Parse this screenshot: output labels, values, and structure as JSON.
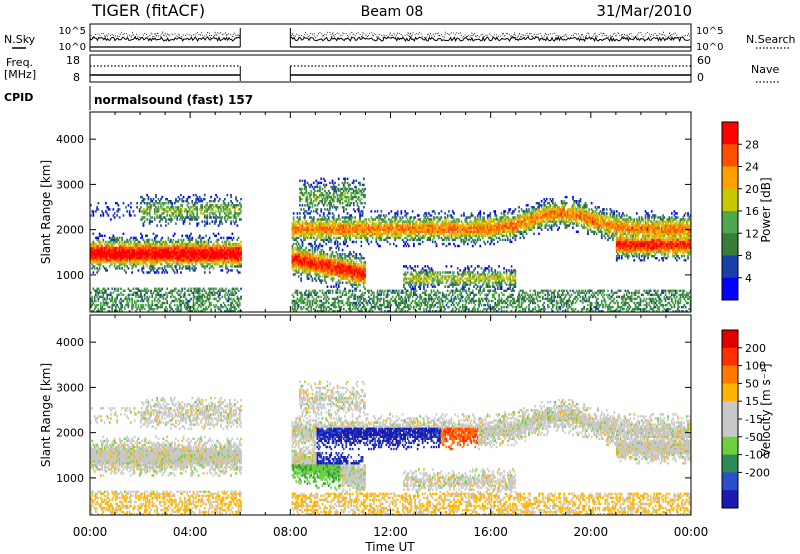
{
  "header": {
    "station": "TIGER (fitACF)",
    "beam": "Beam 08",
    "date": "31/Mar/2010"
  },
  "noise_panel": {
    "left_label": "N.Sky",
    "right_label": "N.Search",
    "left_ticks": [
      "10^5",
      "10^0"
    ],
    "right_ticks": [
      "10^5",
      "10^0"
    ]
  },
  "freq_panel": {
    "left_label_1": "Freq.",
    "left_label_2": "[MHz]",
    "right_label": "Nave",
    "left_ticks": [
      "18",
      "8"
    ],
    "right_ticks": [
      "60",
      "0"
    ]
  },
  "cpid": {
    "label": "CPID",
    "value": "normalsound (fast) 157"
  },
  "colors": {
    "power": [
      "#0000ff",
      "#1a3fa8",
      "#3a7c3a",
      "#4ea84e",
      "#c8c800",
      "#ffa000",
      "#ff5000",
      "#ff0000"
    ],
    "velocity": [
      "#1a1ab4",
      "#2850c8",
      "#2e8b57",
      "#6ecf3c",
      "#c8c8c8",
      "#c8c8c8",
      "#ffb400",
      "#ff7800",
      "#ff3000",
      "#e00000"
    ]
  },
  "chart_data": [
    {
      "type": "heatmap",
      "name": "power",
      "xlabel": "",
      "ylabel": "Slant Range [km]",
      "yticks": [
        "4000",
        "3000",
        "2000",
        "1000"
      ],
      "ylim": [
        180,
        4600
      ],
      "xlim": [
        "00:00",
        "24:00"
      ],
      "data_gap": [
        "06:00",
        "08:00"
      ],
      "colorbar": {
        "label": "Power [dB]",
        "ticks": [
          "28",
          "24",
          "20",
          "16",
          "12",
          "8",
          "4"
        ]
      }
    },
    {
      "type": "heatmap",
      "name": "velocity",
      "xlabel": "Time UT",
      "ylabel": "Slant Range [km]",
      "xticks": [
        "00:00",
        "04:00",
        "08:00",
        "12:00",
        "16:00",
        "20:00",
        "00:00"
      ],
      "yticks": [
        "4000",
        "3000",
        "2000",
        "1000"
      ],
      "ylim": [
        180,
        4600
      ],
      "data_gap": [
        "06:00",
        "08:00"
      ],
      "colorbar": {
        "label": "Velocity [m s⁻¹]",
        "ticks": [
          "200",
          "100",
          "50",
          "15",
          "-15",
          "-50",
          "-100",
          "-200"
        ]
      }
    }
  ]
}
